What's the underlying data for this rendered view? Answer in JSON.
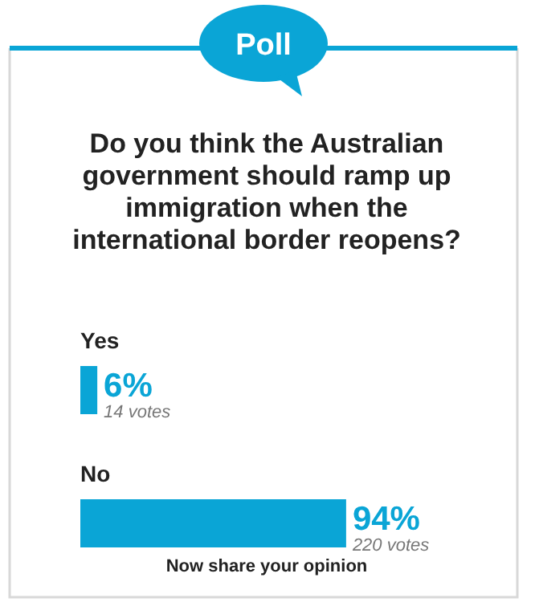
{
  "chart_data": {
    "type": "bar",
    "orientation": "horizontal",
    "title": "Do you think the Australian government should ramp up immigration when the international border reopens?",
    "categories": [
      "Yes",
      "No"
    ],
    "values": [
      6,
      94
    ],
    "color": "#0aa5d6",
    "value_labels": [
      "6%",
      "94%"
    ],
    "annotations": [
      "Poll",
      {
        "text": "14 votes",
        "x": 6,
        "y": "Yes"
      },
      {
        "text": "220 votes",
        "x": 94,
        "y": "No"
      },
      "Now share your opinion"
    ]
  }
}
